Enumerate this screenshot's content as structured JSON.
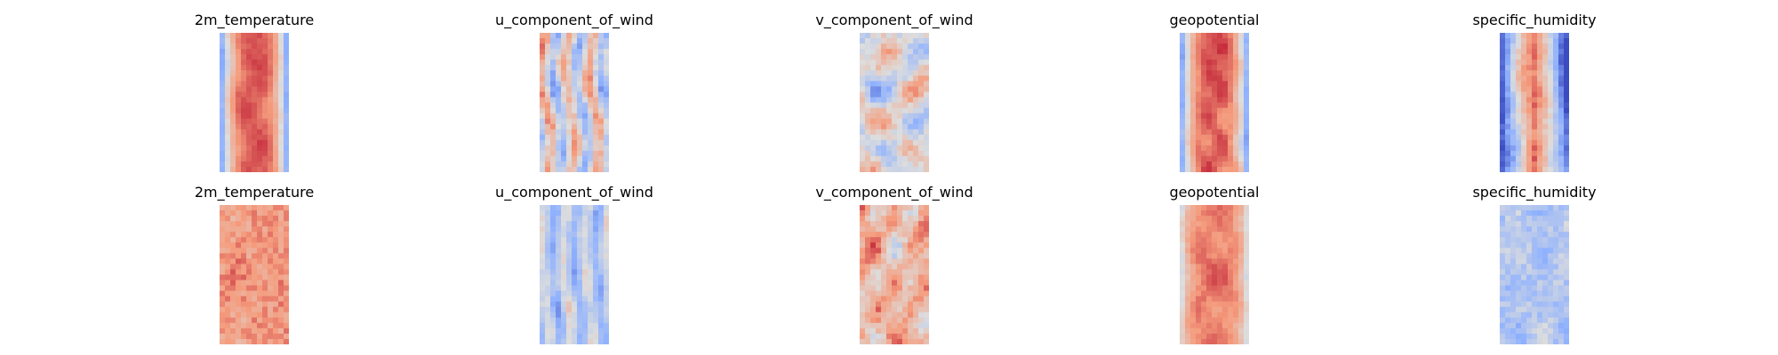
{
  "chart_data": [
    {
      "type": "heatmap",
      "row": 0,
      "title": "2m_temperature",
      "colormap": "coolwarm",
      "pattern": "warm_band",
      "seed": 11,
      "axes": "off"
    },
    {
      "type": "heatmap",
      "row": 0,
      "title": "u_component_of_wind",
      "colormap": "coolwarm",
      "pattern": "streaks",
      "seed": 23,
      "axes": "off"
    },
    {
      "type": "heatmap",
      "row": 0,
      "title": "v_component_of_wind",
      "colormap": "coolwarm",
      "pattern": "blobs",
      "seed": 37,
      "axes": "off"
    },
    {
      "type": "heatmap",
      "row": 0,
      "title": "geopotential",
      "colormap": "coolwarm",
      "pattern": "warm_band",
      "seed": 41,
      "axes": "off"
    },
    {
      "type": "heatmap",
      "row": 0,
      "title": "specific_humidity",
      "colormap": "coolwarm",
      "pattern": "humid_core",
      "seed": 53,
      "axes": "off"
    },
    {
      "type": "heatmap",
      "row": 1,
      "title": "2m_temperature",
      "colormap": "coolwarm",
      "pattern": "warm_noise",
      "seed": 61,
      "axes": "off"
    },
    {
      "type": "heatmap",
      "row": 1,
      "title": "u_component_of_wind",
      "colormap": "coolwarm",
      "pattern": "cool_streaks",
      "seed": 73,
      "axes": "off"
    },
    {
      "type": "heatmap",
      "row": 1,
      "title": "v_component_of_wind",
      "colormap": "coolwarm",
      "pattern": "warm_blobs",
      "seed": 83,
      "axes": "off"
    },
    {
      "type": "heatmap",
      "row": 1,
      "title": "geopotential",
      "colormap": "coolwarm",
      "pattern": "warm_band_soft",
      "seed": 97,
      "axes": "off"
    },
    {
      "type": "heatmap",
      "row": 1,
      "title": "specific_humidity",
      "colormap": "coolwarm",
      "pattern": "cool_noise",
      "seed": 101,
      "axes": "off"
    }
  ],
  "colors": {
    "coolwarm_low": "#3b4cc0",
    "coolwarm_mid": "#dddddd",
    "coolwarm_high": "#b40426",
    "background": "#ffffff"
  }
}
